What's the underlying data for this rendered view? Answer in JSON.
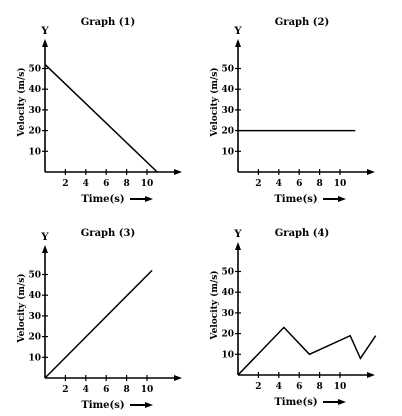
{
  "chart_data": [
    {
      "type": "line",
      "title": "Graph (1)",
      "xlabel": "Time(s)",
      "ylabel": "Velocity (m/s)",
      "y_axis_letter": "Y",
      "xticks": [
        2,
        4,
        6,
        8,
        10
      ],
      "yticks": [
        10,
        20,
        30,
        40,
        50
      ],
      "xlim": [
        0,
        13
      ],
      "ylim": [
        0,
        58
      ],
      "x": [
        0,
        11
      ],
      "y": [
        52,
        0
      ],
      "grid": false
    },
    {
      "type": "line",
      "title": "Graph (2)",
      "xlabel": "Time(s)",
      "ylabel": "Velocity (m/s)",
      "y_axis_letter": "Y",
      "xticks": [
        2,
        4,
        6,
        8,
        10
      ],
      "yticks": [
        10,
        20,
        30,
        40,
        50
      ],
      "xlim": [
        0,
        13
      ],
      "ylim": [
        0,
        58
      ],
      "x": [
        0,
        11.5
      ],
      "y": [
        20,
        20
      ],
      "grid": false
    },
    {
      "type": "line",
      "title": "Graph (3)",
      "xlabel": "Time(s)",
      "ylabel": "Velocity (m/s)",
      "y_axis_letter": "Y",
      "xticks": [
        2,
        4,
        6,
        8,
        10
      ],
      "yticks": [
        10,
        20,
        30,
        40,
        50
      ],
      "xlim": [
        0,
        13
      ],
      "ylim": [
        0,
        58
      ],
      "x": [
        0,
        10.5
      ],
      "y": [
        0,
        52
      ],
      "grid": false
    },
    {
      "type": "line",
      "title": "Graph (4)",
      "xlabel": "Time(s)",
      "ylabel": "Velocity (m/s)",
      "y_axis_letter": "Y",
      "xticks": [
        2,
        4,
        6,
        8,
        10
      ],
      "yticks": [
        10,
        20,
        30,
        40,
        50
      ],
      "xlim": [
        0,
        13
      ],
      "ylim": [
        0,
        58
      ],
      "x": [
        0,
        4.5,
        7,
        11,
        12,
        13.5
      ],
      "y": [
        0,
        23,
        10,
        19,
        8,
        19
      ],
      "grid": false
    }
  ]
}
